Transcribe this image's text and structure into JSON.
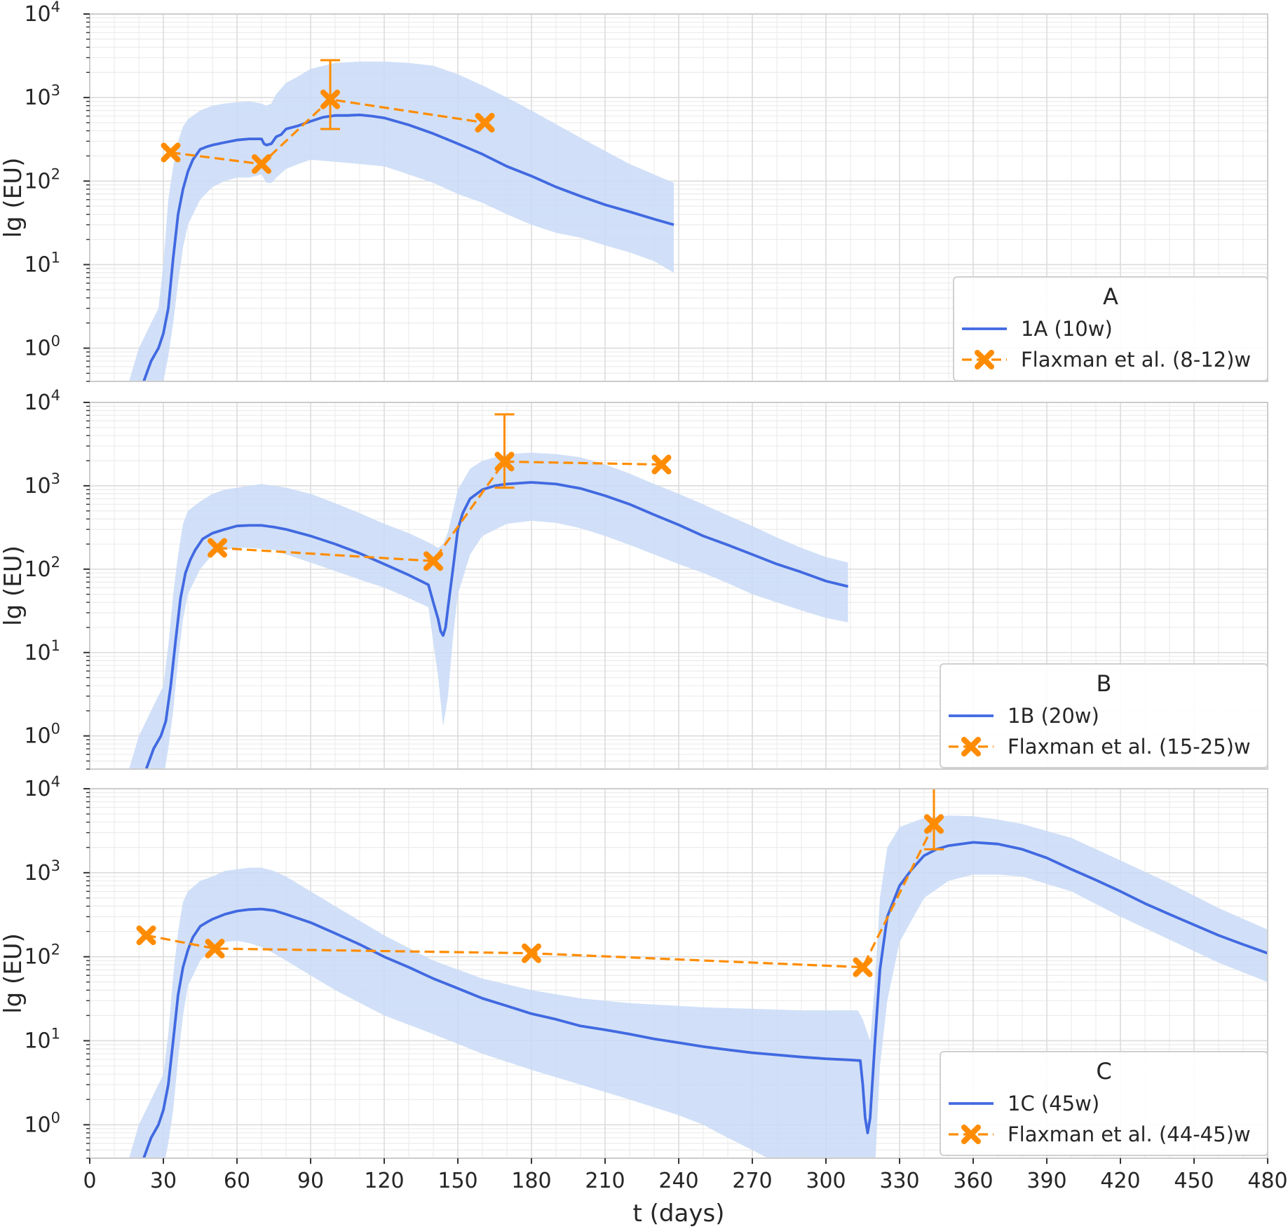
{
  "chart_data": {
    "type": "line",
    "colors": {
      "model": "#4169e1",
      "band": "#c9dbf7",
      "data": "#ff8c00",
      "grid": "#dcdcdc",
      "frame": "#cccccc"
    },
    "xlabel": "t (days)",
    "xlim": [
      0,
      480
    ],
    "xticks": [
      0,
      30,
      60,
      90,
      120,
      150,
      180,
      210,
      240,
      270,
      300,
      330,
      360,
      390,
      420,
      450,
      480
    ],
    "yticks_exp": [
      0,
      1,
      2,
      3,
      4
    ],
    "ytick_base": "10",
    "panels": [
      {
        "ylabel": "lg (EU)",
        "yscale": "log",
        "ylim": [
          0.4,
          10000
        ],
        "legend_title": "A",
        "model_label": "1A (10w)",
        "data_label": "Flaxman et al. (8-12)w",
        "model_t": [
          22,
          25,
          28,
          30,
          32,
          34,
          36,
          38,
          40,
          42,
          45,
          48,
          50,
          55,
          60,
          65,
          70,
          71,
          72,
          74,
          76,
          78,
          80,
          85,
          90,
          95,
          100,
          105,
          110,
          115,
          120,
          130,
          140,
          150,
          160,
          170,
          180,
          190,
          200,
          210,
          220,
          230,
          238
        ],
        "model_y": [
          0.4,
          0.7,
          1,
          1.5,
          3,
          12,
          40,
          80,
          130,
          180,
          240,
          260,
          270,
          290,
          310,
          320,
          320,
          280,
          270,
          280,
          340,
          360,
          420,
          460,
          520,
          580,
          610,
          610,
          620,
          600,
          570,
          470,
          370,
          280,
          210,
          150,
          115,
          85,
          66,
          52,
          43,
          35,
          30
        ],
        "band_t": [
          16,
          20,
          25,
          28,
          30,
          32,
          34,
          36,
          38,
          40,
          45,
          50,
          55,
          60,
          65,
          70,
          72,
          74,
          76,
          80,
          85,
          90,
          100,
          110,
          120,
          130,
          140,
          150,
          160,
          170,
          180,
          190,
          200,
          210,
          220,
          230,
          238
        ],
        "band_low": [
          0.2,
          0.2,
          0.2,
          0.3,
          0.4,
          0.8,
          2,
          6,
          16,
          30,
          60,
          85,
          100,
          110,
          110,
          120,
          95,
          95,
          110,
          140,
          160,
          180,
          170,
          160,
          150,
          120,
          95,
          70,
          55,
          40,
          30,
          24,
          21,
          17,
          14,
          11,
          8
        ],
        "band_high": [
          0.4,
          1,
          2,
          3,
          10,
          60,
          150,
          300,
          450,
          550,
          700,
          800,
          850,
          880,
          900,
          850,
          800,
          850,
          1100,
          1500,
          1800,
          2200,
          2600,
          2700,
          2700,
          2600,
          2400,
          1900,
          1400,
          1000,
          700,
          480,
          330,
          230,
          160,
          120,
          95
        ],
        "data_t": [
          33,
          70,
          98,
          161
        ],
        "data_y": [
          220,
          160,
          950,
          500
        ],
        "err_low": [
          null,
          null,
          420,
          null
        ],
        "err_high": [
          null,
          null,
          2800,
          null
        ]
      },
      {
        "ylabel": "lg (EU)",
        "yscale": "log",
        "ylim": [
          0.4,
          10000
        ],
        "legend_title": "B",
        "model_label": "1B (20w)",
        "data_label": "Flaxman et al. (15-25)w",
        "model_t": [
          23,
          26,
          29,
          31,
          33,
          35,
          37,
          39,
          41,
          43,
          46,
          50,
          55,
          60,
          65,
          70,
          75,
          80,
          90,
          100,
          110,
          120,
          130,
          138,
          140,
          142,
          143,
          144,
          145,
          146,
          148,
          150,
          152,
          155,
          160,
          165,
          170,
          180,
          190,
          200,
          210,
          220,
          230,
          240,
          250,
          260,
          270,
          280,
          290,
          300,
          309
        ],
        "model_y": [
          0.4,
          0.7,
          1,
          1.5,
          4,
          14,
          45,
          90,
          130,
          170,
          230,
          270,
          300,
          330,
          335,
          335,
          320,
          300,
          250,
          200,
          155,
          115,
          85,
          65,
          40,
          25,
          18,
          16,
          20,
          35,
          100,
          300,
          470,
          700,
          900,
          1000,
          1050,
          1100,
          1050,
          930,
          760,
          600,
          450,
          340,
          250,
          195,
          150,
          115,
          92,
          72,
          62
        ],
        "band_t": [
          16,
          20,
          25,
          30,
          32,
          34,
          36,
          38,
          40,
          45,
          50,
          55,
          60,
          65,
          70,
          75,
          80,
          90,
          100,
          110,
          120,
          130,
          138,
          142,
          144,
          146,
          148,
          150,
          155,
          160,
          170,
          180,
          190,
          200,
          210,
          220,
          230,
          240,
          250,
          260,
          270,
          280,
          290,
          300,
          309
        ],
        "band_low": [
          0.2,
          0.2,
          0.2,
          0.3,
          0.7,
          2,
          8,
          25,
          50,
          100,
          150,
          170,
          180,
          180,
          175,
          170,
          150,
          120,
          95,
          75,
          60,
          45,
          35,
          5,
          1.3,
          3,
          15,
          50,
          150,
          250,
          350,
          380,
          360,
          310,
          250,
          195,
          150,
          115,
          90,
          68,
          50,
          40,
          32,
          26,
          23
        ],
        "band_high": [
          0.4,
          1,
          2,
          4,
          12,
          50,
          150,
          350,
          500,
          650,
          800,
          900,
          950,
          1000,
          1050,
          1000,
          950,
          800,
          620,
          470,
          350,
          270,
          210,
          180,
          200,
          280,
          500,
          900,
          1600,
          2000,
          2400,
          2500,
          2400,
          2200,
          1800,
          1400,
          1050,
          800,
          600,
          440,
          330,
          240,
          180,
          140,
          120
        ],
        "data_t": [
          52,
          140,
          169,
          233
        ],
        "data_y": [
          180,
          125,
          1950,
          1800
        ],
        "err_low": [
          null,
          null,
          950,
          null
        ],
        "err_high": [
          null,
          null,
          7200,
          null
        ]
      },
      {
        "ylabel": "lg (EU)",
        "yscale": "log",
        "ylim": [
          0.4,
          10000
        ],
        "legend_title": "C",
        "model_label": "1C (45w)",
        "data_label": "Flaxman et al. (44-45)w",
        "model_t": [
          22,
          25,
          28,
          30,
          32,
          34,
          36,
          38,
          40,
          42,
          45,
          48,
          50,
          55,
          60,
          65,
          70,
          75,
          80,
          90,
          100,
          110,
          120,
          130,
          140,
          150,
          160,
          170,
          180,
          190,
          200,
          210,
          220,
          230,
          240,
          250,
          260,
          270,
          280,
          290,
          300,
          310,
          314,
          315,
          316,
          317,
          318,
          320,
          322,
          325,
          330,
          335,
          340,
          345,
          350,
          360,
          370,
          380,
          390,
          400,
          410,
          420,
          430,
          440,
          450,
          460,
          470,
          480
        ],
        "model_y": [
          0.4,
          0.7,
          1,
          1.5,
          3,
          10,
          35,
          75,
          120,
          170,
          230,
          260,
          280,
          320,
          350,
          365,
          370,
          355,
          320,
          255,
          190,
          140,
          100,
          75,
          55,
          42,
          32,
          26,
          21,
          18,
          15,
          13.5,
          12,
          10.5,
          9.5,
          8.5,
          7.8,
          7.2,
          6.8,
          6.4,
          6.1,
          5.9,
          5.8,
          3,
          1.2,
          0.8,
          1.2,
          10,
          70,
          300,
          700,
          1100,
          1600,
          1900,
          2100,
          2300,
          2200,
          1900,
          1500,
          1100,
          820,
          600,
          430,
          320,
          240,
          180,
          140,
          110
        ],
        "band_t": [
          16,
          20,
          25,
          30,
          32,
          34,
          36,
          38,
          40,
          45,
          50,
          55,
          60,
          65,
          70,
          75,
          80,
          90,
          100,
          120,
          140,
          160,
          180,
          200,
          220,
          240,
          250,
          260,
          270,
          280,
          290,
          300,
          310,
          313,
          315,
          318,
          320,
          322,
          325,
          330,
          340,
          350,
          360,
          370,
          380,
          400,
          420,
          440,
          460,
          480
        ],
        "band_low": [
          0.2,
          0.2,
          0.2,
          0.3,
          0.6,
          1.5,
          6,
          20,
          45,
          90,
          130,
          150,
          155,
          145,
          130,
          110,
          90,
          60,
          40,
          20,
          12,
          7,
          4.5,
          3,
          2,
          1.3,
          1,
          0.7,
          0.5,
          0.35,
          0.3,
          0.3,
          0.3,
          0.3,
          0.3,
          0.3,
          0.3,
          5,
          30,
          150,
          500,
          800,
          950,
          950,
          900,
          600,
          300,
          160,
          85,
          50
        ],
        "band_high": [
          0.4,
          1,
          2,
          4,
          12,
          60,
          200,
          450,
          600,
          800,
          900,
          1050,
          1100,
          1150,
          1150,
          1050,
          900,
          600,
          400,
          180,
          90,
          55,
          40,
          32,
          28,
          26,
          25,
          24.5,
          24,
          23.5,
          23,
          23,
          23,
          23,
          18,
          10,
          50,
          500,
          2000,
          3500,
          4500,
          4800,
          4700,
          4300,
          3800,
          2600,
          1400,
          750,
          380,
          210
        ],
        "data_t": [
          23,
          51,
          180,
          315,
          344
        ],
        "data_y": [
          180,
          125,
          110,
          75,
          3800
        ],
        "err_low": [
          null,
          null,
          null,
          null,
          1900
        ],
        "err_high": [
          null,
          null,
          null,
          null,
          11000
        ]
      }
    ]
  }
}
